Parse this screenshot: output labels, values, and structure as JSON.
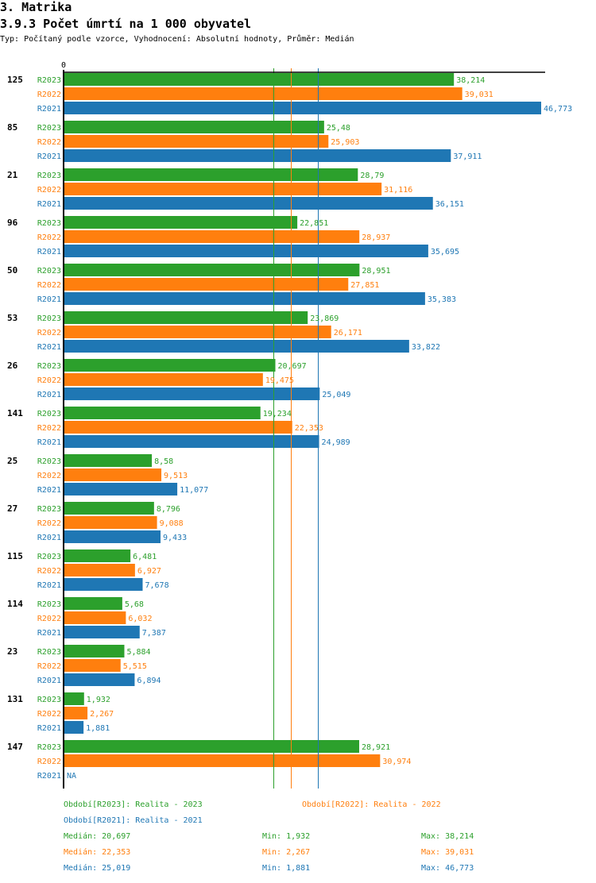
{
  "header": {
    "section": "3. Matrika",
    "title": "3.9.3 Počet úmrtí na 1 000 obyvatel",
    "subtitle": "Typ: Počítaný podle vzorce, Vyhodnocení: Absolutní hodnoty, Průměr: Medián"
  },
  "colors": {
    "R2023": "#2ca02c",
    "R2022": "#ff7f0e",
    "R2021": "#1f77b4",
    "axis": "#000000"
  },
  "chart_data": {
    "type": "bar",
    "orientation": "horizontal",
    "title": "3.9.3 Počet úmrtí na 1 000 obyvatel",
    "xlabel": "",
    "ylabel": "",
    "x_tick_labels": [
      "0"
    ],
    "xlim": [
      0,
      46.773
    ],
    "grid": false,
    "legend_position": "bottom",
    "categories": [
      "125",
      "85",
      "21",
      "96",
      "50",
      "53",
      "26",
      "141",
      "25",
      "27",
      "115",
      "114",
      "23",
      "131",
      "147"
    ],
    "series": [
      {
        "name": "R2023",
        "label": "Období[R2023]: Realita - 2023",
        "values": [
          38.214,
          25.48,
          28.79,
          22.851,
          28.951,
          23.869,
          20.697,
          19.234,
          8.58,
          8.796,
          6.481,
          5.68,
          5.884,
          1.932,
          28.921
        ],
        "value_labels": [
          "38,214",
          "25,48",
          "28,79",
          "22,851",
          "28,951",
          "23,869",
          "20,697",
          "19,234",
          "8,58",
          "8,796",
          "6,481",
          "5,68",
          "5,884",
          "1,932",
          "28,921"
        ],
        "median": 20.697
      },
      {
        "name": "R2022",
        "label": "Období[R2022]: Realita - 2022",
        "values": [
          39.031,
          25.903,
          31.116,
          28.937,
          27.851,
          26.171,
          19.475,
          22.353,
          9.513,
          9.088,
          6.927,
          6.032,
          5.515,
          2.267,
          30.974
        ],
        "value_labels": [
          "39,031",
          "25,903",
          "31,116",
          "28,937",
          "27,851",
          "26,171",
          "19,475",
          "22,353",
          "9,513",
          "9,088",
          "6,927",
          "6,032",
          "5,515",
          "2,267",
          "30,974"
        ],
        "median": 22.353
      },
      {
        "name": "R2021",
        "label": "Období[R2021]: Realita - 2021",
        "values": [
          46.773,
          37.911,
          36.151,
          35.695,
          35.383,
          33.822,
          25.049,
          24.989,
          11.077,
          9.433,
          7.678,
          7.387,
          6.894,
          1.881,
          null
        ],
        "value_labels": [
          "46,773",
          "37,911",
          "36,151",
          "35,695",
          "35,383",
          "33,822",
          "25,049",
          "24,989",
          "11,077",
          "9,433",
          "7,678",
          "7,387",
          "6,894",
          "1,881",
          "NA"
        ],
        "median": 25.019
      }
    ]
  },
  "legend": {
    "items": [
      {
        "key": "R2023",
        "text": "Období[R2023]: Realita - 2023"
      },
      {
        "key": "R2022",
        "text": "Období[R2022]: Realita - 2022"
      },
      {
        "key": "R2021",
        "text": "Období[R2021]: Realita - 2021"
      }
    ],
    "stats": [
      {
        "key": "R2023",
        "median": "Medián: 20,697",
        "min": "Min: 1,932",
        "max": "Max: 38,214"
      },
      {
        "key": "R2022",
        "median": "Medián: 22,353",
        "min": "Min: 2,267",
        "max": "Max: 39,031"
      },
      {
        "key": "R2021",
        "median": "Medián: 25,019",
        "min": "Min: 1,881",
        "max": "Max: 46,773"
      }
    ]
  }
}
